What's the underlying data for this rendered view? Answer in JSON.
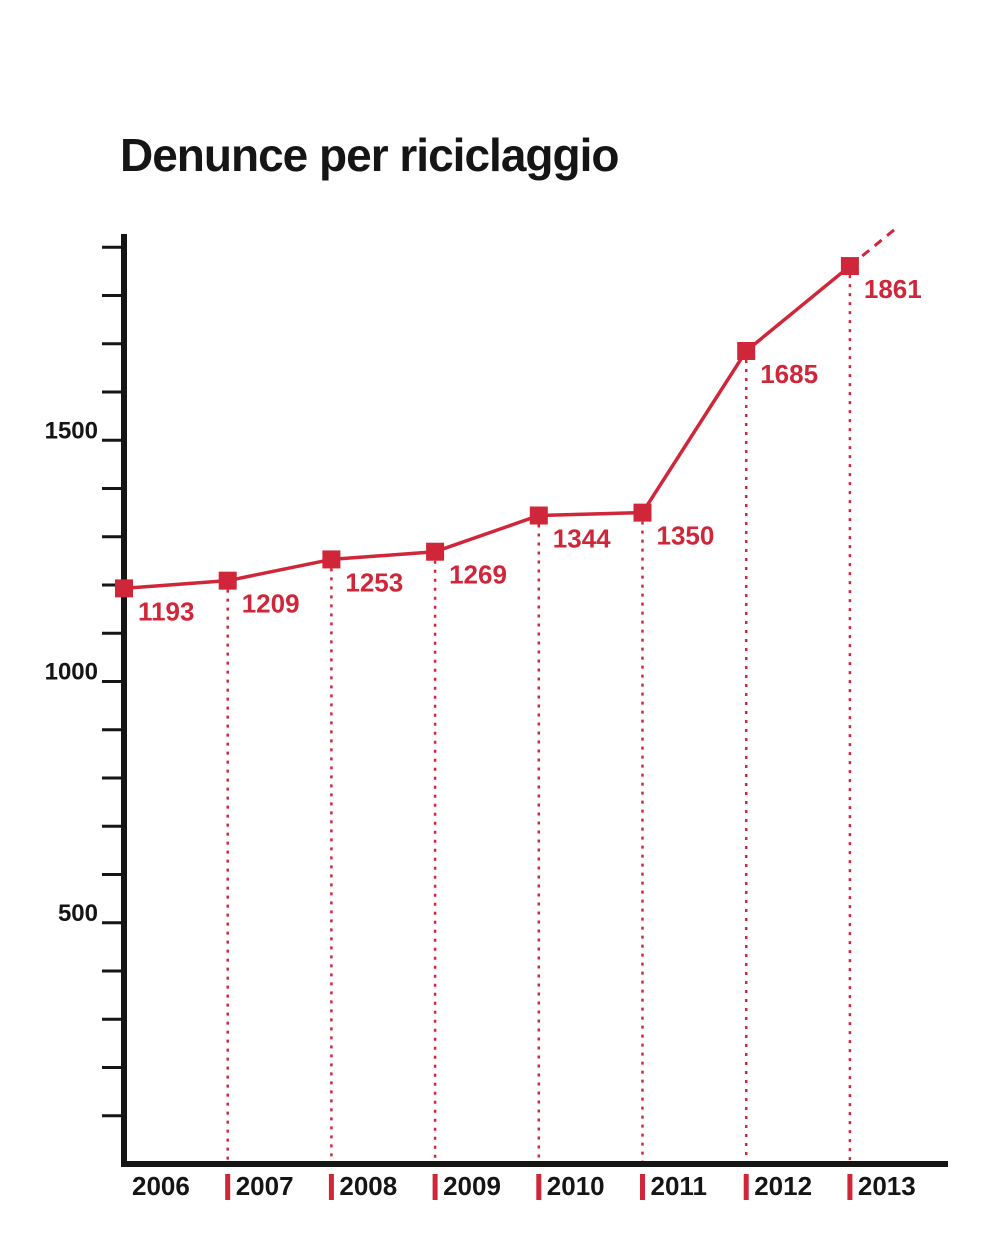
{
  "chart_data": {
    "type": "line",
    "title": "Denunce per riciclaggio",
    "xlabel": "",
    "ylabel": "",
    "ylim": [
      0,
      2100
    ],
    "yticks": [
      500,
      1000,
      1500
    ],
    "minor_tick_step": 100,
    "categories": [
      "2006",
      "2007",
      "2008",
      "2009",
      "2010",
      "2011",
      "2012",
      "2013"
    ],
    "values": [
      1193,
      1209,
      1253,
      1269,
      1344,
      1350,
      1685,
      1861
    ],
    "data_labels": [
      "1193",
      "1209",
      "1253",
      "1269",
      "1344",
      "1350",
      "1685",
      "1861"
    ],
    "grid": false,
    "legend": "none",
    "trend_continues_dashed": true,
    "colors": {
      "series": "#d0263a",
      "axis": "#151515",
      "text": "#151515"
    }
  }
}
